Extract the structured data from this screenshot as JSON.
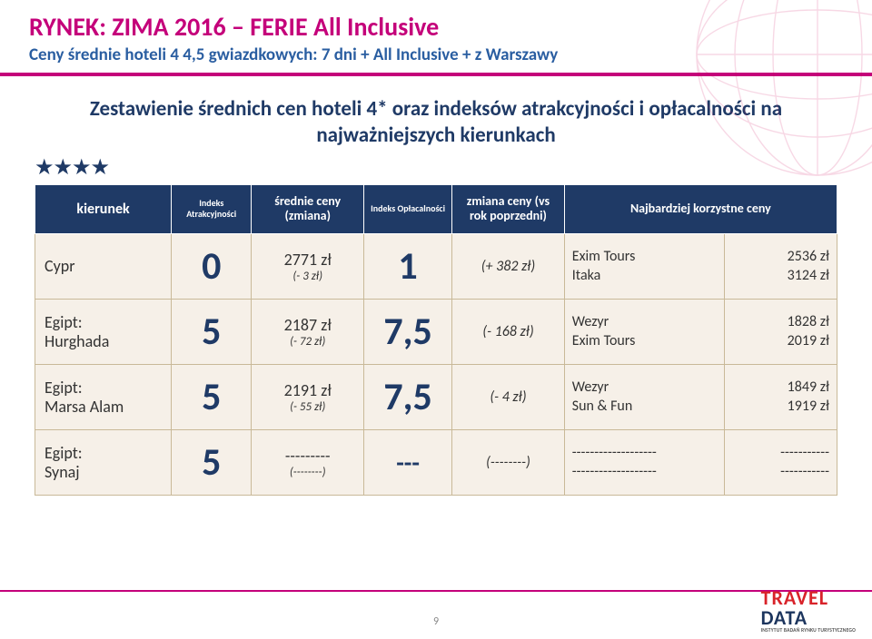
{
  "colors": {
    "magenta": "#c4007a",
    "navy": "#1f3a66",
    "accentBlue": "#2a5ea1",
    "cellBg": "#f6f0e8",
    "borderGray": "#c9b998",
    "globeStroke": "#c99",
    "logoRed": "#d8232a",
    "logoNavy": "#1c355e",
    "footerLine": "#c4007a",
    "text": "#333333"
  },
  "header": {
    "title": "RYNEK: ZIMA 2016 – FERIE All Inclusive",
    "subtitle": "Ceny średnie hoteli 4 4,5 gwiazdkowych: 7 dni + All Inclusive + z Warszawy"
  },
  "intro": "Zestawienie średnich cen hoteli 4* oraz indeksów atrakcyjności i opłacalności na najważniejszych kierunkach",
  "stars": "★★★★",
  "columns": {
    "kierunek": "kierunek",
    "idxA": "Indeks Atrakcyjności",
    "avg": "średnie ceny (zmiana)",
    "idxO": "Indeks Opłacalności",
    "delta": "zmiana ceny (vs rok poprzedni)",
    "best": "Najbardziej korzystne ceny"
  },
  "colWidths": [
    "17%",
    "10%",
    "14%",
    "11%",
    "14%",
    "20%",
    "14%"
  ],
  "rows": [
    {
      "kierunek": "Cypr",
      "idxA": "0",
      "avgMain": "2771 zł",
      "avgSub": "(- 3 zł)",
      "idxO": "1",
      "delta": "(+ 382 zł)",
      "bestOps": "Exim Tours\nItaka",
      "bestPrices": "2536 zł\n3124 zł"
    },
    {
      "kierunek": "Egipt:\nHurghada",
      "idxA": "5",
      "avgMain": "2187 zł",
      "avgSub": "(- 72 zł)",
      "idxO": "7,5",
      "delta": "(- 168 zł)",
      "bestOps": "Wezyr\nExim Tours",
      "bestPrices": "1828 zł\n2019 zł"
    },
    {
      "kierunek": "Egipt:\nMarsa Alam",
      "idxA": "5",
      "avgMain": "2191 zł",
      "avgSub": "(- 55 zł)",
      "idxO": "7,5",
      "delta": "(- 4 zł)",
      "bestOps": "Wezyr\nSun & Fun",
      "bestPrices": "1849 zł\n1919 zł"
    },
    {
      "kierunek": "Egipt:\nSynaj",
      "idxA": "5",
      "avgMain": "---------",
      "avgSub": "(--------)",
      "idxO": "---",
      "delta": "(--------)",
      "bestOps": "-------------------\n-------------------",
      "bestPrices": "-----------\n-----------"
    }
  ],
  "pageNumber": "9",
  "logo": {
    "line1": "TRAVEL",
    "line2": "DATA",
    "tag": "INSTYTUT BADAŃ RYNKU TURYSTYCZNEGO"
  }
}
